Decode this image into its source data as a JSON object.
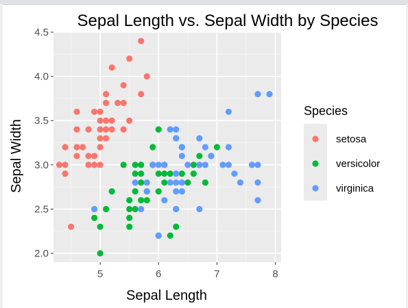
{
  "chart_data": {
    "type": "scatter",
    "title": "Sepal Length vs. Sepal Width by Species",
    "xlabel": "Sepal Length",
    "ylabel": "Sepal Width",
    "xlim": [
      4.2,
      8.1
    ],
    "ylim": [
      1.9,
      4.5
    ],
    "xticks": [
      "5",
      "6",
      "7",
      "8"
    ],
    "yticks": [
      "2.0",
      "2.5",
      "3.0",
      "3.5",
      "4.0",
      "4.5"
    ],
    "grid": true,
    "legend": {
      "title": "Species",
      "position": "right"
    },
    "series": [
      {
        "name": "setosa",
        "color": "#F8766D",
        "points": [
          [
            4.3,
            3.0
          ],
          [
            4.4,
            2.9
          ],
          [
            4.4,
            3.0
          ],
          [
            4.4,
            3.2
          ],
          [
            4.5,
            2.3
          ],
          [
            4.6,
            3.1
          ],
          [
            4.6,
            3.2
          ],
          [
            4.6,
            3.4
          ],
          [
            4.6,
            3.6
          ],
          [
            4.7,
            3.2
          ],
          [
            4.8,
            3.0
          ],
          [
            4.8,
            3.1
          ],
          [
            4.8,
            3.4
          ],
          [
            4.9,
            3.0
          ],
          [
            4.9,
            3.1
          ],
          [
            4.9,
            3.6
          ],
          [
            5.0,
            3.0
          ],
          [
            5.0,
            3.2
          ],
          [
            5.0,
            3.3
          ],
          [
            5.0,
            3.4
          ],
          [
            5.0,
            3.5
          ],
          [
            5.0,
            3.6
          ],
          [
            5.1,
            3.3
          ],
          [
            5.1,
            3.4
          ],
          [
            5.1,
            3.5
          ],
          [
            5.1,
            3.7
          ],
          [
            5.1,
            3.8
          ],
          [
            5.2,
            3.4
          ],
          [
            5.2,
            3.5
          ],
          [
            5.2,
            4.1
          ],
          [
            5.3,
            3.7
          ],
          [
            5.4,
            3.4
          ],
          [
            5.4,
            3.7
          ],
          [
            5.4,
            3.9
          ],
          [
            5.5,
            3.5
          ],
          [
            5.5,
            4.2
          ],
          [
            5.7,
            3.8
          ],
          [
            5.7,
            4.4
          ],
          [
            5.8,
            4.0
          ]
        ]
      },
      {
        "name": "versicolor",
        "color": "#00BA38",
        "points": [
          [
            4.9,
            2.4
          ],
          [
            5.0,
            2.0
          ],
          [
            5.0,
            2.3
          ],
          [
            5.1,
            2.5
          ],
          [
            5.2,
            2.7
          ],
          [
            5.4,
            3.0
          ],
          [
            5.5,
            2.3
          ],
          [
            5.5,
            2.4
          ],
          [
            5.5,
            2.5
          ],
          [
            5.5,
            2.6
          ],
          [
            5.6,
            2.5
          ],
          [
            5.6,
            2.7
          ],
          [
            5.6,
            2.9
          ],
          [
            5.6,
            3.0
          ],
          [
            5.7,
            2.6
          ],
          [
            5.7,
            2.8
          ],
          [
            5.7,
            2.9
          ],
          [
            5.7,
            3.0
          ],
          [
            5.8,
            2.6
          ],
          [
            5.8,
            2.7
          ],
          [
            5.9,
            3.0
          ],
          [
            5.9,
            3.2
          ],
          [
            6.0,
            2.2
          ],
          [
            6.0,
            2.7
          ],
          [
            6.0,
            2.9
          ],
          [
            6.0,
            3.4
          ],
          [
            6.1,
            2.8
          ],
          [
            6.1,
            2.9
          ],
          [
            6.1,
            3.0
          ],
          [
            6.2,
            2.2
          ],
          [
            6.2,
            2.9
          ],
          [
            6.3,
            2.3
          ],
          [
            6.3,
            2.5
          ],
          [
            6.3,
            3.3
          ],
          [
            6.4,
            2.9
          ],
          [
            6.4,
            3.2
          ],
          [
            6.5,
            2.8
          ],
          [
            6.6,
            2.9
          ],
          [
            6.6,
            3.0
          ],
          [
            6.7,
            3.0
          ],
          [
            6.7,
            3.1
          ],
          [
            6.8,
            2.8
          ],
          [
            6.9,
            3.1
          ],
          [
            7.0,
            3.2
          ]
        ]
      },
      {
        "name": "virginica",
        "color": "#619CFF",
        "points": [
          [
            4.9,
            2.5
          ],
          [
            5.6,
            2.8
          ],
          [
            5.7,
            2.5
          ],
          [
            5.8,
            2.7
          ],
          [
            5.8,
            2.8
          ],
          [
            5.9,
            3.0
          ],
          [
            6.0,
            2.2
          ],
          [
            6.0,
            3.0
          ],
          [
            6.1,
            2.6
          ],
          [
            6.1,
            3.0
          ],
          [
            6.2,
            2.8
          ],
          [
            6.2,
            3.4
          ],
          [
            6.3,
            2.5
          ],
          [
            6.3,
            2.7
          ],
          [
            6.3,
            2.8
          ],
          [
            6.3,
            2.9
          ],
          [
            6.3,
            3.3
          ],
          [
            6.3,
            3.4
          ],
          [
            6.4,
            2.7
          ],
          [
            6.4,
            2.8
          ],
          [
            6.4,
            3.1
          ],
          [
            6.4,
            3.2
          ],
          [
            6.5,
            3.0
          ],
          [
            6.7,
            2.5
          ],
          [
            6.7,
            3.0
          ],
          [
            6.7,
            3.3
          ],
          [
            6.8,
            3.0
          ],
          [
            6.8,
            3.2
          ],
          [
            6.9,
            3.1
          ],
          [
            7.1,
            3.0
          ],
          [
            7.2,
            3.0
          ],
          [
            7.2,
            3.2
          ],
          [
            7.2,
            3.6
          ],
          [
            7.3,
            2.9
          ],
          [
            7.4,
            2.8
          ],
          [
            7.6,
            3.0
          ],
          [
            7.7,
            2.6
          ],
          [
            7.7,
            2.8
          ],
          [
            7.7,
            3.0
          ],
          [
            7.7,
            3.8
          ],
          [
            7.9,
            3.8
          ]
        ]
      }
    ]
  }
}
